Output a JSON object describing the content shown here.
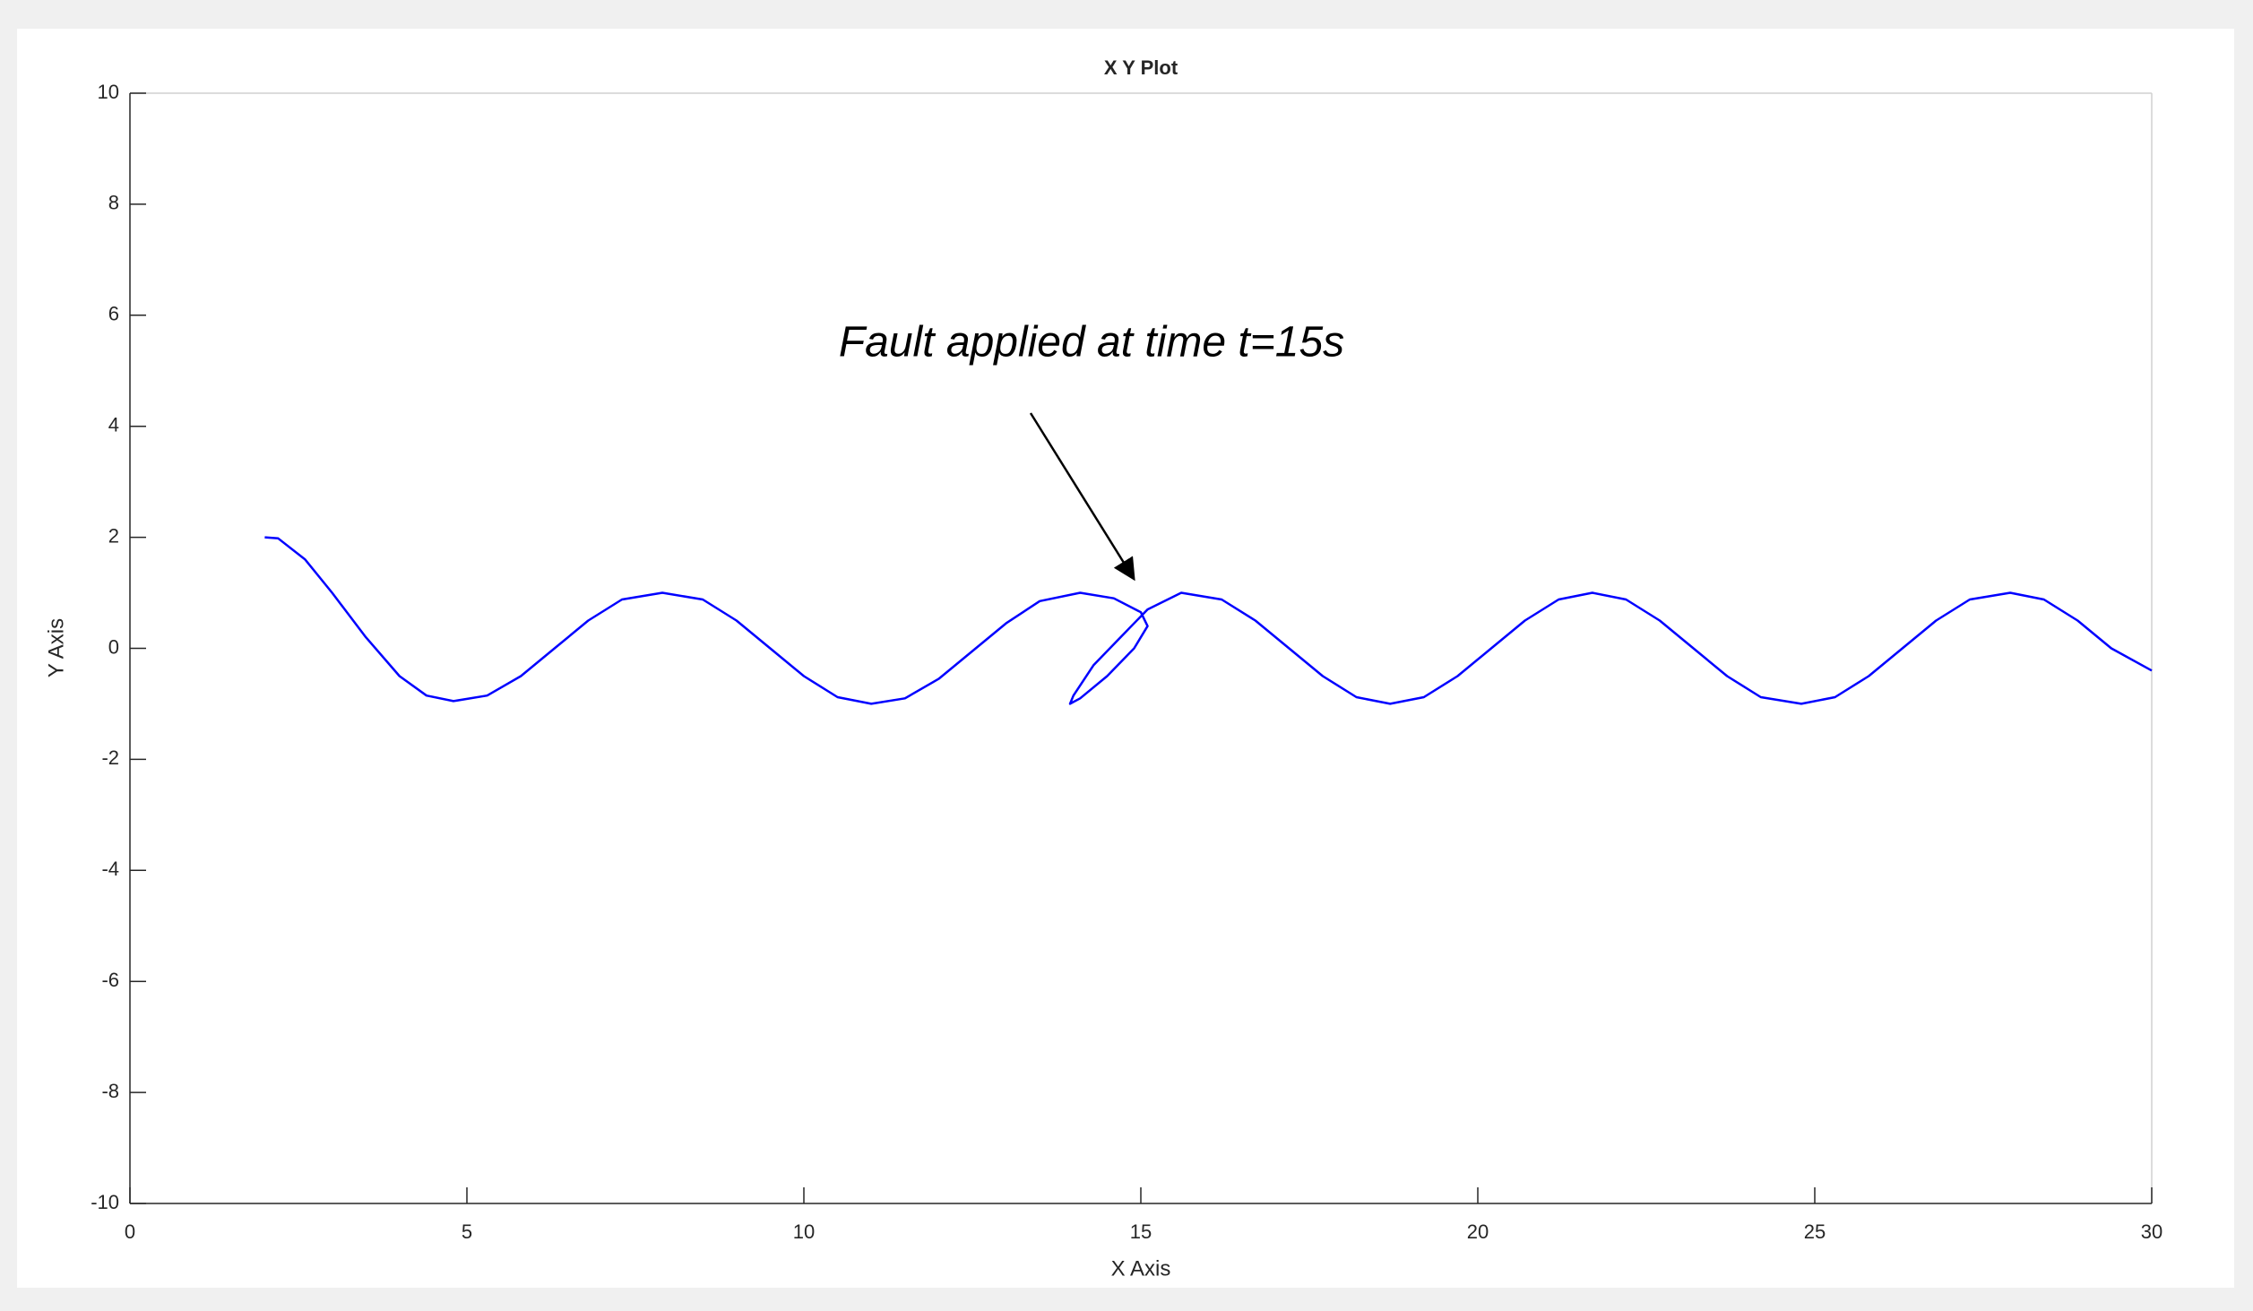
{
  "chart_data": {
    "type": "line",
    "title": "X Y Plot",
    "x_label": "X Axis",
    "y_label": "Y Axis",
    "annotation": "Fault applied at time t=15s",
    "color": "#0000ff",
    "x": [
      2.0,
      2.2,
      2.6,
      3.0,
      3.5,
      4.0,
      4.4,
      4.8,
      5.3,
      5.8,
      6.3,
      6.8,
      7.3,
      7.9,
      8.5,
      9.0,
      9.5,
      10.0,
      10.5,
      11.0,
      11.5,
      12.0,
      12.5,
      13.0,
      13.5,
      14.1,
      14.6,
      15.0,
      15.1,
      14.9,
      14.5,
      14.1,
      13.95,
      14.0,
      14.3,
      14.7,
      15.1,
      15.6,
      16.2,
      16.7,
      17.2,
      17.7,
      18.2,
      18.7,
      19.2,
      19.7,
      20.2,
      20.7,
      21.2,
      21.7,
      22.2,
      22.7,
      23.2,
      23.7,
      24.2,
      24.8,
      25.3,
      25.8,
      26.3,
      26.8,
      27.3,
      27.9,
      28.4,
      28.9,
      29.4,
      30.0
    ],
    "values": [
      2.0,
      1.98,
      1.6,
      1.0,
      0.2,
      -0.5,
      -0.85,
      -0.95,
      -0.85,
      -0.5,
      0.0,
      0.5,
      0.88,
      1.0,
      0.88,
      0.5,
      0.0,
      -0.5,
      -0.88,
      -1.0,
      -0.9,
      -0.55,
      -0.05,
      0.45,
      0.85,
      1.0,
      0.9,
      0.65,
      0.4,
      0.0,
      -0.5,
      -0.9,
      -1.0,
      -0.85,
      -0.3,
      0.2,
      0.7,
      1.0,
      0.88,
      0.5,
      0.0,
      -0.5,
      -0.88,
      -1.0,
      -0.88,
      -0.5,
      0.0,
      0.5,
      0.88,
      1.0,
      0.88,
      0.5,
      0.0,
      -0.5,
      -0.88,
      -1.0,
      -0.88,
      -0.5,
      0.0,
      0.5,
      0.88,
      1.0,
      0.88,
      0.5,
      0.0,
      -0.4
    ],
    "xlim": [
      0,
      30
    ],
    "xticks": [
      0,
      5,
      10,
      15,
      20,
      25,
      30
    ],
    "ylim": [
      -10,
      10
    ],
    "yticks": [
      -10,
      -8,
      -6,
      -4,
      -2,
      0,
      2,
      4,
      6,
      8,
      10
    ]
  }
}
